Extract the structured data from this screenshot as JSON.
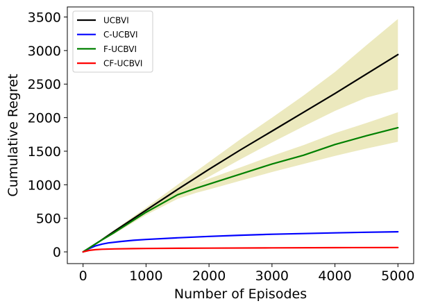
{
  "chart_data": {
    "type": "line",
    "xlabel": "Number of Episodes",
    "ylabel": "Cumulative Regret",
    "xlim": [
      -250,
      5250
    ],
    "ylim": [
      -175,
      3650
    ],
    "xticks": [
      0,
      1000,
      2000,
      3000,
      4000,
      5000
    ],
    "yticks": [
      0,
      500,
      1000,
      1500,
      2000,
      2500,
      3000,
      3500
    ],
    "grid": false,
    "legend_position": "top-left",
    "band_color": "#e6e2a8",
    "series": [
      {
        "name": "UCBVI",
        "color": "#000000",
        "x": [
          0,
          250,
          500,
          1000,
          1500,
          2000,
          2500,
          3000,
          3500,
          4000,
          4500,
          5000
        ],
        "y": [
          0,
          150,
          310,
          620,
          930,
          1230,
          1520,
          1800,
          2080,
          2360,
          2650,
          2940
        ],
        "lower": [
          0,
          140,
          290,
          580,
          860,
          1120,
          1380,
          1630,
          1870,
          2100,
          2300,
          2420
        ],
        "upper": [
          0,
          165,
          330,
          660,
          1000,
          1340,
          1680,
          2000,
          2330,
          2680,
          3080,
          3470
        ]
      },
      {
        "name": "C-UCBVI",
        "color": "#0000ff",
        "x": [
          0,
          100,
          200,
          300,
          400,
          600,
          800,
          1000,
          1500,
          2000,
          2500,
          3000,
          3500,
          4000,
          4500,
          5000
        ],
        "y": [
          0,
          50,
          90,
          115,
          133,
          155,
          172,
          185,
          210,
          230,
          248,
          262,
          273,
          283,
          292,
          300
        ]
      },
      {
        "name": "F-UCBVI",
        "color": "#008000",
        "x": [
          0,
          250,
          500,
          1000,
          1500,
          1800,
          2000,
          2500,
          3000,
          3500,
          4000,
          4500,
          5000
        ],
        "y": [
          0,
          150,
          290,
          590,
          850,
          950,
          1010,
          1160,
          1310,
          1440,
          1600,
          1730,
          1850
        ],
        "lower": [
          0,
          140,
          270,
          550,
          790,
          880,
          930,
          1060,
          1190,
          1310,
          1430,
          1540,
          1640
        ],
        "upper": [
          0,
          160,
          310,
          630,
          910,
          1020,
          1090,
          1260,
          1430,
          1590,
          1770,
          1920,
          2080
        ]
      },
      {
        "name": "CF-UCBVI",
        "color": "#ff0000",
        "x": [
          0,
          100,
          200,
          300,
          500,
          800,
          1000,
          1500,
          2000,
          3000,
          4000,
          5000
        ],
        "y": [
          0,
          22,
          33,
          39,
          44,
          48,
          50,
          53,
          56,
          60,
          63,
          65
        ]
      }
    ]
  }
}
